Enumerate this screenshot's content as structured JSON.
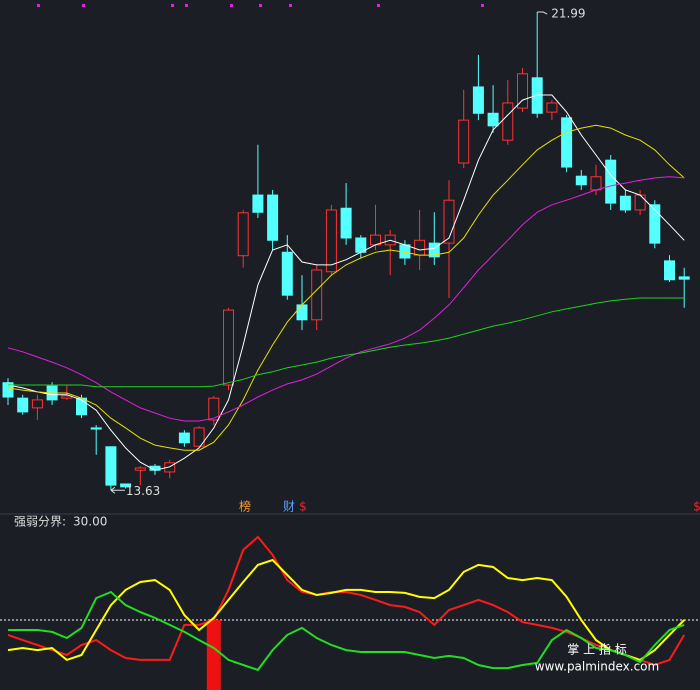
{
  "chart_data": [
    {
      "type": "candlestick",
      "ylim": [
        13.25,
        22.2
      ],
      "up_color": "#ff3232",
      "down_color": "#54ffff",
      "open": [
        15.51,
        15.24,
        15.07,
        15.45,
        15.24,
        15.24,
        14.72,
        14.39,
        13.74,
        13.98,
        14.05,
        13.95,
        14.63,
        14.4,
        14.86,
        15.47,
        17.73,
        18.79,
        18.79,
        17.79,
        16.87,
        16.61,
        17.45,
        18.56,
        18.04,
        17.92,
        17.92,
        17.92,
        17.74,
        17.95,
        17.95,
        19.35,
        20.68,
        20.22,
        19.75,
        20.31,
        20.84,
        20.24,
        20.14,
        19.12,
        18.88,
        19.4,
        18.77,
        18.53,
        18.62,
        17.64,
        17.36
      ],
      "high": [
        15.59,
        15.3,
        15.3,
        15.52,
        15.47,
        15.3,
        14.77,
        14.39,
        13.74,
        14.05,
        14.09,
        14.16,
        14.68,
        14.75,
        15.28,
        16.82,
        18.53,
        19.67,
        18.88,
        18.09,
        17.39,
        17.57,
        18.62,
        19.0,
        18.09,
        18.62,
        18.18,
        18.0,
        18.53,
        18.49,
        19.05,
        20.63,
        21.24,
        20.71,
        20.8,
        21.01,
        21.99,
        20.45,
        20.19,
        19.23,
        19.32,
        19.49,
        18.88,
        18.88,
        18.7,
        17.74,
        17.52
      ],
      "low": [
        15.12,
        14.95,
        14.86,
        15.12,
        15.21,
        14.89,
        14.25,
        13.63,
        13.66,
        13.72,
        13.9,
        13.84,
        14.39,
        14.37,
        14.77,
        15.38,
        17.52,
        18.39,
        17.83,
        16.96,
        16.43,
        16.43,
        17.39,
        17.92,
        17.69,
        17.83,
        17.39,
        17.57,
        17.48,
        17.57,
        16.99,
        19.26,
        20.1,
        19.88,
        19.67,
        20.24,
        20.14,
        20.1,
        19.19,
        18.88,
        18.79,
        18.53,
        18.48,
        18.44,
        17.86,
        17.27,
        16.82
      ],
      "close": [
        15.26,
        15.0,
        15.21,
        15.21,
        15.28,
        14.95,
        14.7,
        13.72,
        13.69,
        14.02,
        13.98,
        14.11,
        14.46,
        14.72,
        15.24,
        16.78,
        18.48,
        18.49,
        18.0,
        17.04,
        16.61,
        17.48,
        18.53,
        18.04,
        17.79,
        18.09,
        18.09,
        17.69,
        18.0,
        17.71,
        18.7,
        20.1,
        20.22,
        20.0,
        20.4,
        20.91,
        20.22,
        20.4,
        19.28,
        18.97,
        19.11,
        18.65,
        18.53,
        18.79,
        17.95,
        17.31,
        17.32
      ],
      "series": [
        {
          "color": "#ffffff",
          "values": [
            15.47,
            15.42,
            15.35,
            15.3,
            15.3,
            15.21,
            15.03,
            14.68,
            14.37,
            14.12,
            13.98,
            14.04,
            14.19,
            14.37,
            14.72,
            15.21,
            16.17,
            17.22,
            17.83,
            17.92,
            17.62,
            17.57,
            17.57,
            17.66,
            17.79,
            17.92,
            18.0,
            17.92,
            17.83,
            17.86,
            18.04,
            18.7,
            19.4,
            19.93,
            20.19,
            20.45,
            20.54,
            20.54,
            20.24,
            19.84,
            19.49,
            19.14,
            18.88,
            18.79,
            18.53,
            18.27,
            18.0
          ]
        },
        {
          "color": "#e8e000",
          "values": [
            15.42,
            15.38,
            15.35,
            15.33,
            15.33,
            15.24,
            15.12,
            14.89,
            14.72,
            14.54,
            14.42,
            14.37,
            14.33,
            14.33,
            14.47,
            14.77,
            15.21,
            15.73,
            16.17,
            16.57,
            16.87,
            17.13,
            17.39,
            17.57,
            17.69,
            17.79,
            17.83,
            17.79,
            17.74,
            17.74,
            17.79,
            18.04,
            18.44,
            18.79,
            19.05,
            19.32,
            19.58,
            19.75,
            19.89,
            19.96,
            20.01,
            19.96,
            19.84,
            19.75,
            19.58,
            19.32,
            19.09
          ]
        },
        {
          "color": "#e020e0",
          "values": [
            16.12,
            16.05,
            15.96,
            15.87,
            15.77,
            15.65,
            15.51,
            15.35,
            15.21,
            15.07,
            14.98,
            14.89,
            14.84,
            14.84,
            14.89,
            15.0,
            15.12,
            15.26,
            15.38,
            15.49,
            15.56,
            15.66,
            15.8,
            15.94,
            16.05,
            16.12,
            16.19,
            16.29,
            16.43,
            16.64,
            16.87,
            17.17,
            17.48,
            17.74,
            18.0,
            18.27,
            18.49,
            18.62,
            18.7,
            18.79,
            18.88,
            18.95,
            19.0,
            19.05,
            19.09,
            19.11,
            19.09
          ]
        },
        {
          "color": "#20d020",
          "values": [
            15.47,
            15.47,
            15.47,
            15.47,
            15.47,
            15.47,
            15.44,
            15.44,
            15.44,
            15.44,
            15.44,
            15.44,
            15.44,
            15.44,
            15.45,
            15.51,
            15.57,
            15.65,
            15.7,
            15.77,
            15.82,
            15.87,
            15.94,
            15.99,
            16.03,
            16.08,
            16.13,
            16.17,
            16.2,
            16.24,
            16.29,
            16.36,
            16.43,
            16.5,
            16.55,
            16.61,
            16.68,
            16.75,
            16.8,
            16.85,
            16.9,
            16.94,
            16.97,
            16.99,
            16.99,
            16.99,
            16.99
          ]
        }
      ],
      "markers": [
        "榜",
        "财",
        "$",
        "$"
      ]
    },
    {
      "type": "line",
      "ylim": [
        0,
        75
      ],
      "threshold_name": "强弱分界:",
      "threshold": {
        "value": 30,
        "label": "30.00"
      },
      "series": [
        {
          "color": "#ff1a1a",
          "values": [
            23.6,
            21.4,
            19.3,
            17.1,
            15.0,
            19.3,
            21.4,
            17.1,
            13.7,
            12.9,
            12.9,
            12.9,
            27.9,
            27.9,
            30.0,
            42.9,
            60.0,
            65.6,
            57.9,
            47.1,
            42.0,
            40.7,
            42.0,
            42.0,
            40.7,
            38.6,
            36.4,
            35.6,
            33.4,
            27.9,
            34.3,
            36.4,
            38.6,
            36.4,
            33.4,
            29.1,
            27.9,
            26.6,
            24.9,
            22.3,
            19.3,
            17.1,
            15.0,
            12.9,
            10.7,
            12.9,
            23.6
          ]
        },
        {
          "color": "#ffff00",
          "values": [
            17.1,
            18.0,
            17.1,
            18.0,
            12.9,
            15.0,
            25.7,
            36.4,
            42.9,
            46.3,
            47.1,
            42.9,
            32.1,
            25.7,
            30.9,
            38.6,
            46.3,
            53.6,
            55.7,
            49.3,
            42.9,
            40.7,
            41.6,
            42.9,
            42.9,
            42.0,
            42.0,
            41.6,
            39.9,
            39.4,
            42.9,
            50.6,
            53.6,
            52.7,
            48.0,
            47.1,
            48.0,
            47.1,
            39.9,
            30.0,
            21.4,
            17.1,
            15.0,
            12.9,
            17.1,
            23.6,
            30.0
          ]
        },
        {
          "color": "#22dd22",
          "values": [
            25.7,
            25.7,
            25.7,
            24.9,
            22.3,
            26.6,
            39.4,
            42.0,
            36.4,
            33.4,
            30.9,
            27.9,
            24.9,
            21.4,
            18.0,
            12.9,
            10.7,
            8.6,
            17.1,
            23.6,
            26.6,
            22.3,
            19.3,
            17.1,
            16.3,
            16.3,
            16.3,
            16.3,
            15.0,
            13.7,
            14.6,
            13.7,
            10.7,
            9.4,
            9.4,
            10.7,
            11.6,
            21.4,
            25.7,
            22.3,
            18.0,
            17.1,
            15.0,
            12.0,
            19.3,
            25.7,
            27.9
          ]
        }
      ],
      "signal": {
        "color": "#ee1111",
        "values": [
          null,
          null,
          null,
          null,
          null,
          null,
          null,
          null,
          null,
          null,
          null,
          null,
          null,
          null,
          30,
          null,
          null,
          null,
          null,
          null,
          null,
          null,
          null,
          null,
          null,
          null,
          null,
          null,
          null,
          null,
          null,
          null,
          null,
          null,
          null,
          null,
          null,
          null,
          null,
          null,
          null,
          null,
          null,
          null,
          null,
          null,
          null
        ]
      }
    }
  ],
  "watermark": [
    "掌 上 指 标",
    "www.palmindex.com"
  ]
}
